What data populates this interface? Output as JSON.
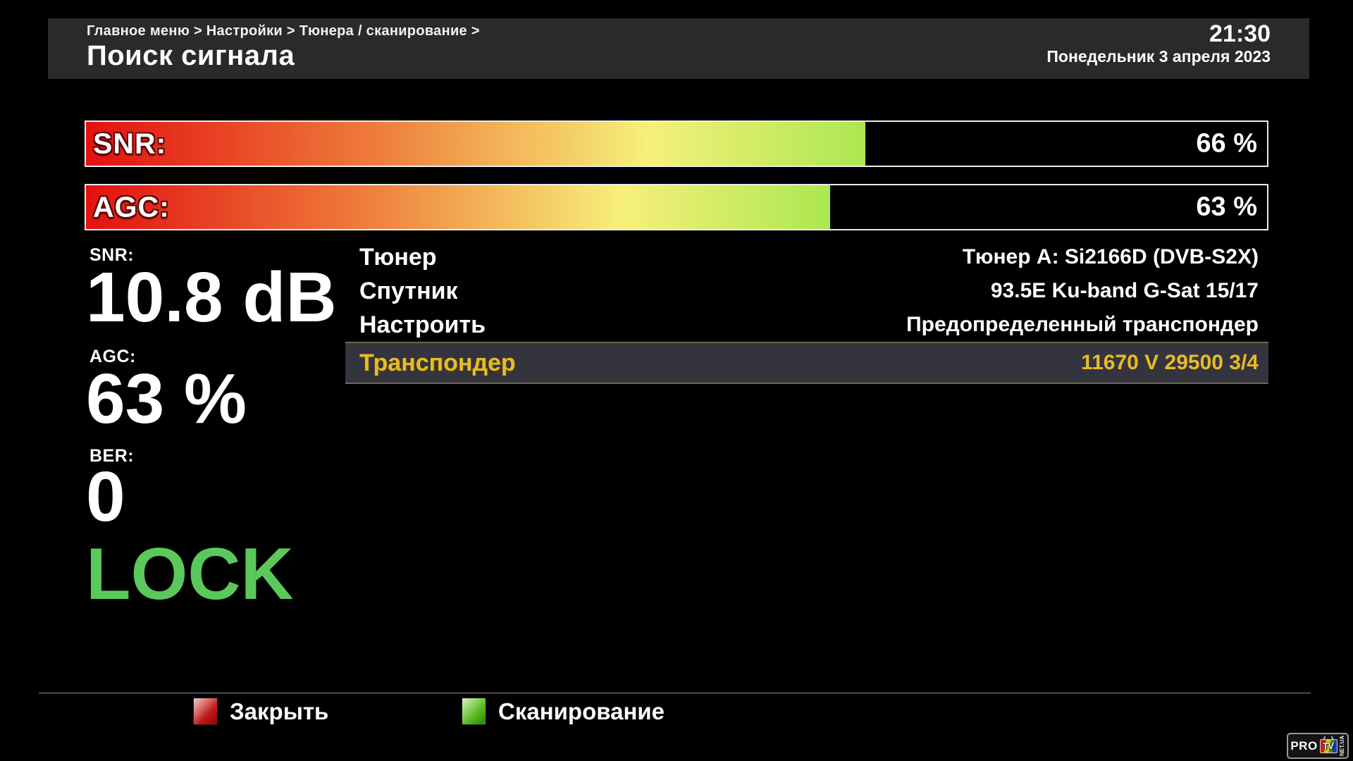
{
  "header": {
    "breadcrumb": "Главное меню > Настройки > Тюнера / сканирование >",
    "title": "Поиск сигнала",
    "time": "21:30",
    "date": "Понедельник  3 апреля 2023"
  },
  "meters": [
    {
      "label": "SNR:",
      "percent": 66,
      "value_text": "66 %"
    },
    {
      "label": "AGC:",
      "percent": 63,
      "value_text": "63 %"
    }
  ],
  "stats": [
    {
      "label": "SNR:",
      "value": "10.8 dB"
    },
    {
      "label": "AGC:",
      "value": "63 %"
    },
    {
      "label": "BER:",
      "value": "0"
    }
  ],
  "lock_status": "LOCK",
  "menu": {
    "items": [
      {
        "label": "Тюнер",
        "value": "Тюнер A: Si2166D (DVB-S2X)",
        "selected": false
      },
      {
        "label": "Спутник",
        "value": "93.5E Ku-band G-Sat 15/17",
        "selected": false
      },
      {
        "label": "Настроить",
        "value": "Предопределенный транспондер",
        "selected": false
      },
      {
        "label": "Транспондер",
        "value": "11670 V 29500 3/4",
        "selected": true
      }
    ]
  },
  "footer": {
    "buttons": [
      {
        "key": "red",
        "label": "Закрыть"
      },
      {
        "key": "green",
        "label": "Сканирование"
      }
    ]
  },
  "logo": {
    "pro": "PRO",
    "tv": "TV",
    "netua": "NET.UA"
  },
  "colors": {
    "background": "#000000",
    "header_bg": "#2a2a2a",
    "lock_green": "#5bc85c",
    "accent_yellow": "#e8bb26",
    "selected_row_bg": "#34343e",
    "selected_row_border": "#6e6847",
    "meter_gradient": [
      "#e31111",
      "#ee7f3c",
      "#f7f07a",
      "#abe751"
    ],
    "key_red": "#c01818",
    "key_green": "#53b61e"
  }
}
